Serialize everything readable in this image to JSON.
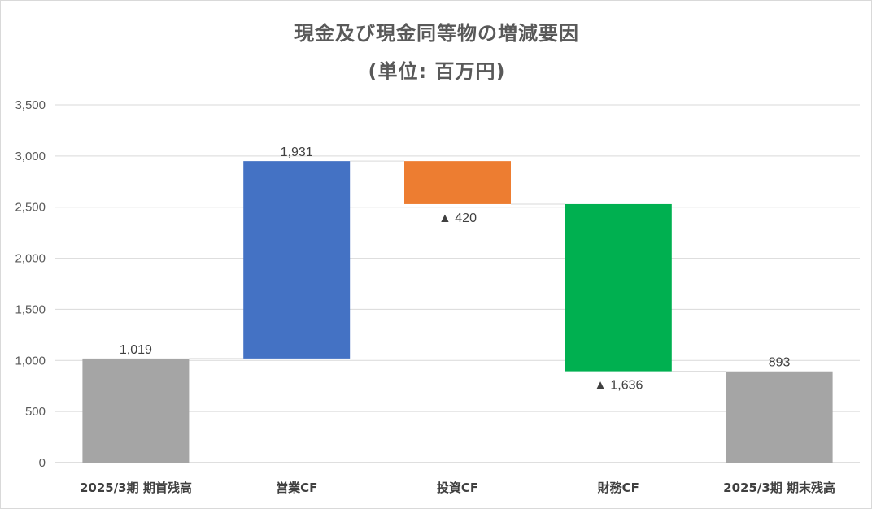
{
  "title_line1": "現金及び現金同等物の増減要因",
  "title_line2": "(単位: 百万円)",
  "chart_data": {
    "type": "bar",
    "subtype": "waterfall",
    "title": "現金及び現金同等物の増減要因 (単位: 百万円)",
    "categories": [
      "2025/3期 期首残高",
      "営業CF",
      "投資CF",
      "財務CF",
      "2025/3期 期末残高"
    ],
    "steps": [
      {
        "category": "2025/3期 期首残高",
        "kind": "total",
        "base": 0,
        "top": 1019,
        "label": "1,019",
        "color": "#a5a5a5"
      },
      {
        "category": "営業CF",
        "kind": "increase",
        "base": 1019,
        "top": 2950,
        "label": "1,931",
        "color": "#4472c4"
      },
      {
        "category": "投資CF",
        "kind": "decrease",
        "base": 2530,
        "top": 2950,
        "label": "▲ 420",
        "color": "#ed7d31"
      },
      {
        "category": "財務CF",
        "kind": "decrease",
        "base": 894,
        "top": 2530,
        "label": "▲ 1,636",
        "color": "#00b050"
      },
      {
        "category": "2025/3期 期末残高",
        "kind": "total",
        "base": 0,
        "top": 893,
        "label": "893",
        "color": "#a5a5a5"
      }
    ],
    "yticks": [
      "0",
      "500",
      "1,000",
      "1,500",
      "2,000",
      "2,500",
      "3,000",
      "3,500"
    ],
    "ylim": [
      0,
      3500
    ],
    "grid": true,
    "legend": "none"
  }
}
